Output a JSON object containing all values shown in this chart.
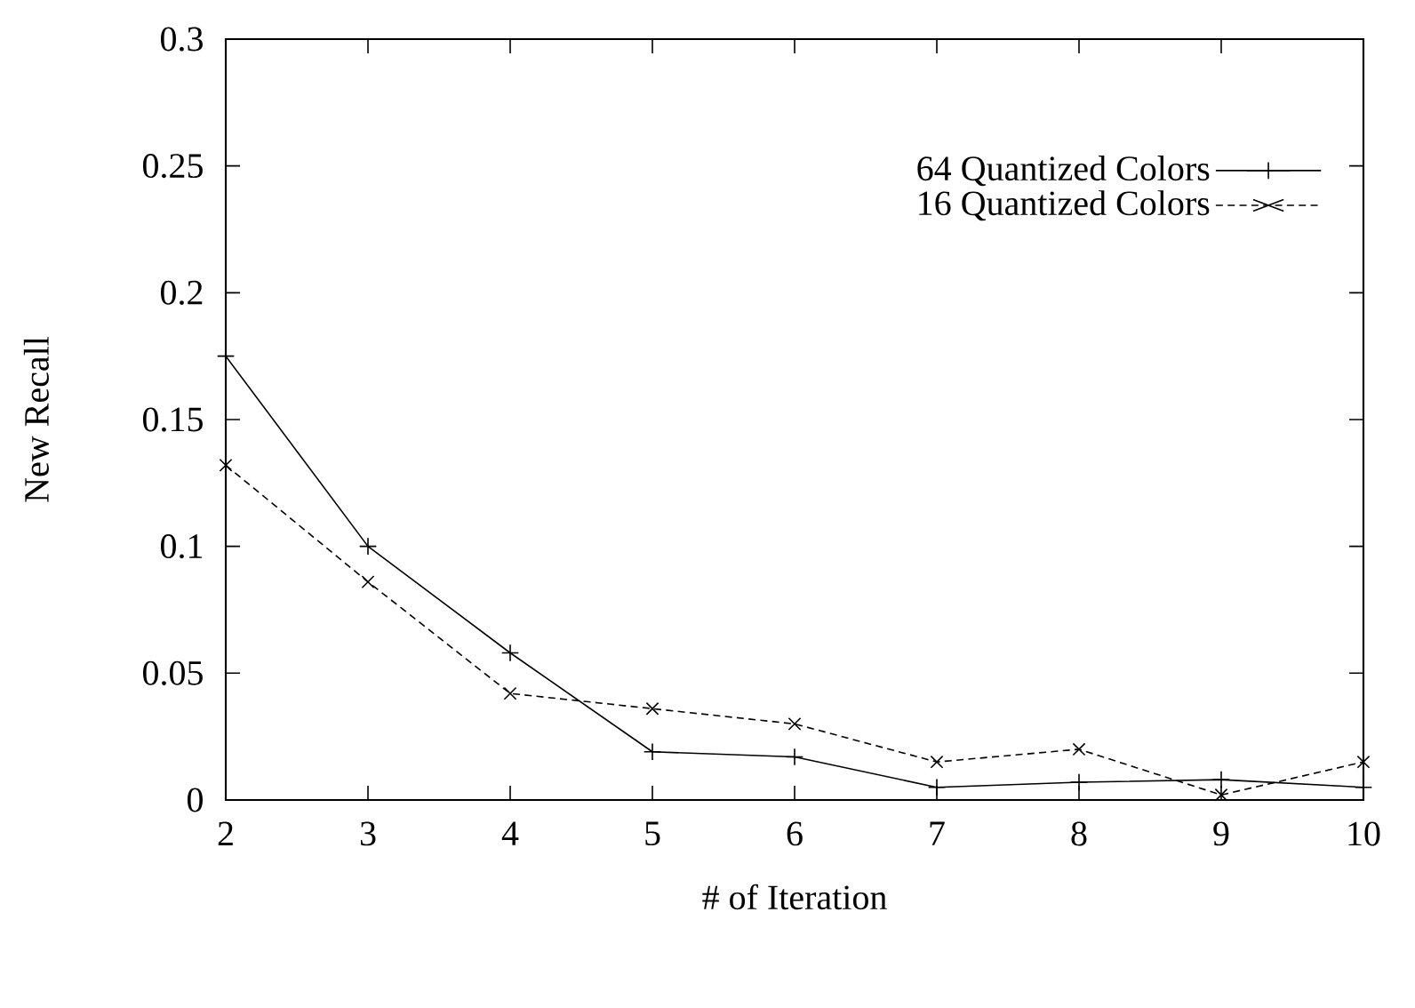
{
  "chart_data": {
    "type": "line",
    "xlabel": "# of Iteration",
    "ylabel": "New Recall",
    "x": [
      2,
      3,
      4,
      5,
      6,
      7,
      8,
      9,
      10
    ],
    "series": [
      {
        "name": "64 Quantized Colors",
        "color": "#000000",
        "marker": "plus",
        "line_style": "solid",
        "values": [
          0.175,
          0.1,
          0.058,
          0.019,
          0.017,
          0.005,
          0.007,
          0.008,
          0.005
        ]
      },
      {
        "name": "16 Quantized Colors",
        "color": "#000000",
        "marker": "cross",
        "line_style": "dashed",
        "values": [
          0.132,
          0.086,
          0.042,
          0.036,
          0.03,
          0.015,
          0.02,
          0.002,
          0.015
        ]
      }
    ],
    "xlim": [
      2,
      10
    ],
    "ylim": [
      0,
      0.3
    ],
    "xticks": [
      2,
      3,
      4,
      5,
      6,
      7,
      8,
      9,
      10
    ],
    "yticks": [
      0,
      0.05,
      0.1,
      0.15,
      0.2,
      0.25,
      0.3
    ],
    "legend": "top right"
  }
}
